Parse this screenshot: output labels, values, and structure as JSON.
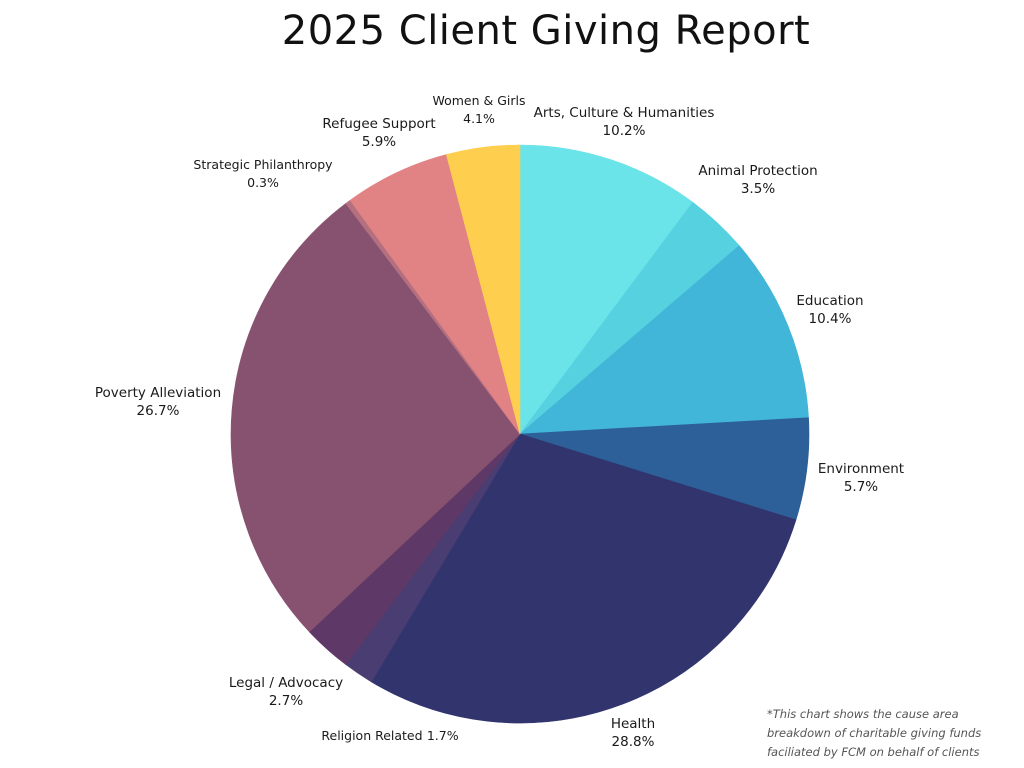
{
  "chart_data": {
    "type": "pie",
    "title": "2025 Client Giving Report",
    "start_angle_deg": 0,
    "direction": "clockwise",
    "slices": [
      {
        "label": "Arts, Culture & Humanities",
        "value": 10.2,
        "value_label": "10.2%",
        "color": "#6ae3e9"
      },
      {
        "label": "Animal Protection",
        "value": 3.5,
        "value_label": "3.5%",
        "color": "#56d1e0"
      },
      {
        "label": "Education",
        "value": 10.4,
        "value_label": "10.4%",
        "color": "#42b6d8"
      },
      {
        "label": "Environment",
        "value": 5.7,
        "value_label": "5.7%",
        "color": "#2d5f98"
      },
      {
        "label": "Health",
        "value": 28.8,
        "value_label": "28.8%",
        "color": "#31346d"
      },
      {
        "label": "Religion Related",
        "value": 1.7,
        "value_label": "1.7%",
        "color": "#4a3d72"
      },
      {
        "label": "Legal / Advocacy",
        "value": 2.7,
        "value_label": "2.7%",
        "color": "#5e3867"
      },
      {
        "label": "Poverty Alleviation",
        "value": 26.7,
        "value_label": "26.7%",
        "color": "#87526f"
      },
      {
        "label": "Strategic Philanthropy",
        "value": 0.3,
        "value_label": "0.3%",
        "color": "#b57080"
      },
      {
        "label": "Refugee Support",
        "value": 5.9,
        "value_label": "5.9%",
        "color": "#e18385"
      },
      {
        "label": "Women & Girls",
        "value": 4.1,
        "value_label": "4.1%",
        "color": "#fecf4f"
      }
    ]
  },
  "footnote": {
    "line1": "*This chart shows the cause area",
    "line2": "breakdown of charitable giving funds",
    "line3": "faciliated by FCM on behalf of clients"
  }
}
